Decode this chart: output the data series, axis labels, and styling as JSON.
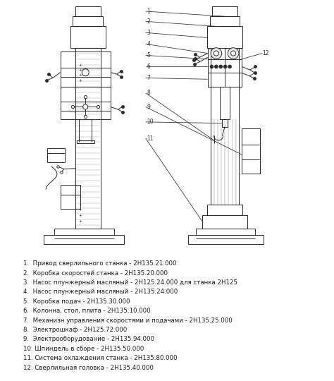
{
  "bg_color": "#ffffff",
  "line_color": "#2a2a2a",
  "text_color": "#1a1a1a",
  "legend_items": [
    "1.  Привод сверлильного станка - 2Н135.21.000",
    "2.  Коробка скоростей станка - 2Н135.20.000",
    "3.  Насос плунжерный масляный - 2Н125.24.000 для станка 2Н125",
    "4.  Насос плунжерный масляный - 2Н135.24.000",
    "5.  Коробка подач - 2Н135.30.000",
    "6.  Колонна, стол, плита - 2Н135.10.000",
    "7.  Механизн управления скоростями и подачами - 2Н135.25.000",
    "8.  Электрошкаф - 2Н125.72.000",
    "9.  Электрооборудование - 2Н135.94.000",
    "10. Шпиндель в сборе - 2Н135.50.000",
    "11. Система охлаждения станка - 2Н135.80.000",
    "12. Сверлильная головка - 2Н135.40.000"
  ],
  "figsize": [
    4.74,
    5.4
  ],
  "dpi": 100
}
